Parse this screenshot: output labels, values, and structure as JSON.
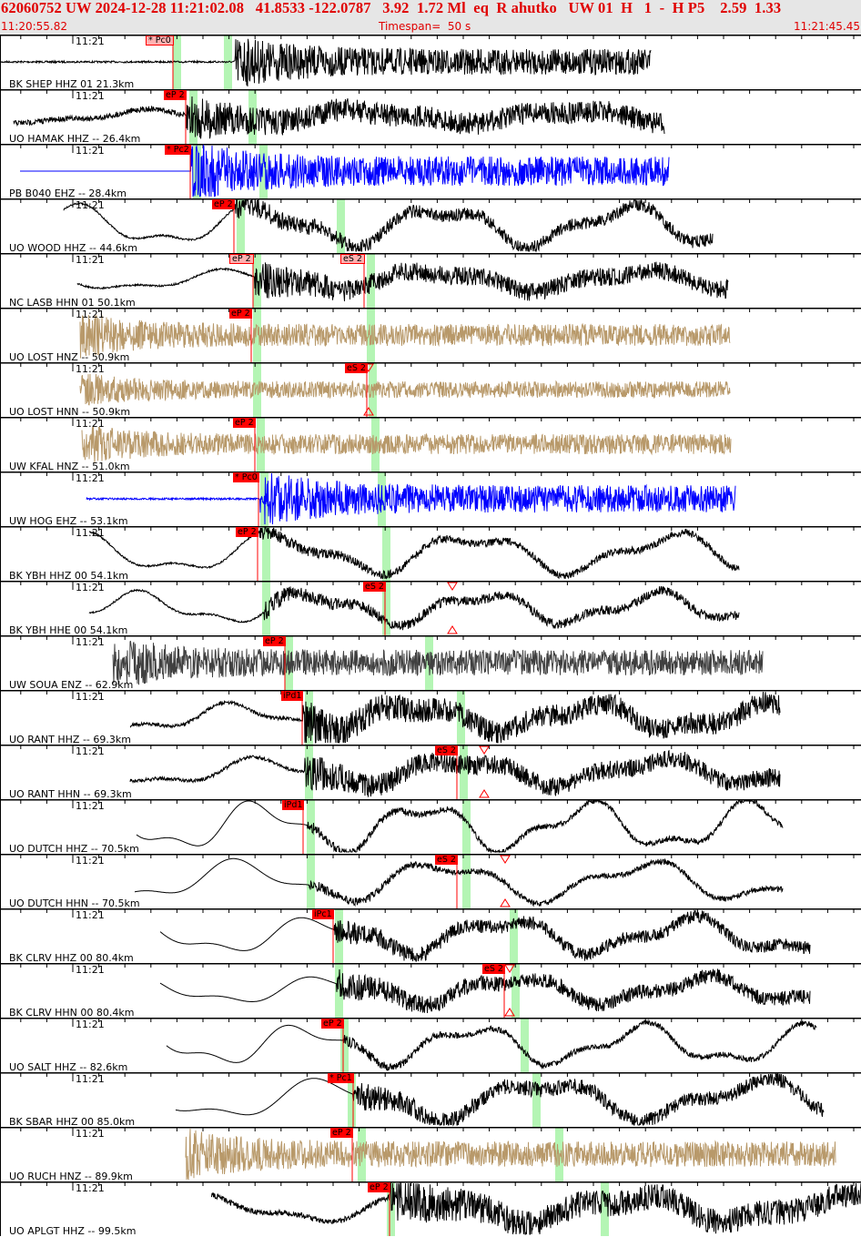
{
  "header": {
    "title": "62060752 UW 2024-12-28 11:21:02.08   41.8533 -122.0787   3.92  1.72 Ml  eq  R ahutko   UW 01  H   1  -  H P5    2.59  1.33",
    "start_time": "11:20:55.82",
    "timespan": "Timespan=  50 s",
    "end_time": "11:21:45.45"
  },
  "colors": {
    "header_text": "#e00000",
    "pick": "#ff0000",
    "window": "#b4f5b4",
    "velocity": "#000000",
    "short_period": "#0000ff",
    "accelerometer": "#b8996a",
    "strong": "#404040"
  },
  "minute_label": "11:21",
  "traces": [
    {
      "label": "BK SHEP HHZ 01 21.3km",
      "color": "#000000",
      "picks": [
        "* Pc0"
      ]
    },
    {
      "label": "UO HAMAK HHZ -- 26.4km",
      "color": "#000000",
      "picks": [
        "eP 2"
      ]
    },
    {
      "label": "PB B040 EHZ -- 28.4km",
      "color": "#0000ff",
      "picks": [
        "* Pc2"
      ]
    },
    {
      "label": "UO WOOD HHZ -- 44.6km",
      "color": "#000000",
      "picks": [
        "eP 2"
      ]
    },
    {
      "label": "NC LASB HHN 01 50.1km",
      "color": "#000000",
      "picks": [
        "eP 2",
        "eS 2"
      ]
    },
    {
      "label": "UO LOST HNZ -- 50.9km",
      "color": "#b8996a",
      "picks": [
        "eP 2"
      ]
    },
    {
      "label": "UO LOST HNN -- 50.9km",
      "color": "#b8996a",
      "picks": [
        "eS 2"
      ]
    },
    {
      "label": "UW KFAL HNZ -- 51.0km",
      "color": "#b8996a",
      "picks": [
        "eP 2"
      ]
    },
    {
      "label": "UW HOG EHZ -- 53.1km",
      "color": "#0000ff",
      "picks": [
        "* Pc0"
      ]
    },
    {
      "label": "BK YBH HHZ 00 54.1km",
      "color": "#000000",
      "picks": [
        "eP 2"
      ]
    },
    {
      "label": "BK YBH HHE 00 54.1km",
      "color": "#000000",
      "picks": [
        "eS 2"
      ]
    },
    {
      "label": "UW SOUA ENZ -- 62.9km",
      "color": "#404040",
      "picks": [
        "eP 2"
      ]
    },
    {
      "label": "UO RANT HHZ -- 69.3km",
      "color": "#000000",
      "picks": [
        "iPd1"
      ]
    },
    {
      "label": "UO RANT HHN -- 69.3km",
      "color": "#000000",
      "picks": [
        "eS 2"
      ]
    },
    {
      "label": "UO DUTCH HHZ -- 70.5km",
      "color": "#000000",
      "picks": [
        "iPd1"
      ]
    },
    {
      "label": "UO DUTCH HHN -- 70.5km",
      "color": "#000000",
      "picks": [
        "eS 2"
      ]
    },
    {
      "label": "BK CLRV HHZ 00 80.4km",
      "color": "#000000",
      "picks": [
        "iPc1"
      ]
    },
    {
      "label": "BK CLRV HHN 00 80.4km",
      "color": "#000000",
      "picks": [
        "eS 2"
      ]
    },
    {
      "label": "UO SALT HHZ -- 82.6km",
      "color": "#000000",
      "picks": [
        "eP 2"
      ]
    },
    {
      "label": "BK SBAR HHZ 00 85.0km",
      "color": "#000000",
      "picks": [
        "* Pc1"
      ]
    },
    {
      "label": "UO RUCH HNZ -- 89.9km",
      "color": "#b8996a",
      "picks": [
        "eP 2"
      ]
    },
    {
      "label": "UO APLGT HHZ -- 99.5km",
      "color": "#000000",
      "picks": [
        "eP 2"
      ]
    }
  ]
}
